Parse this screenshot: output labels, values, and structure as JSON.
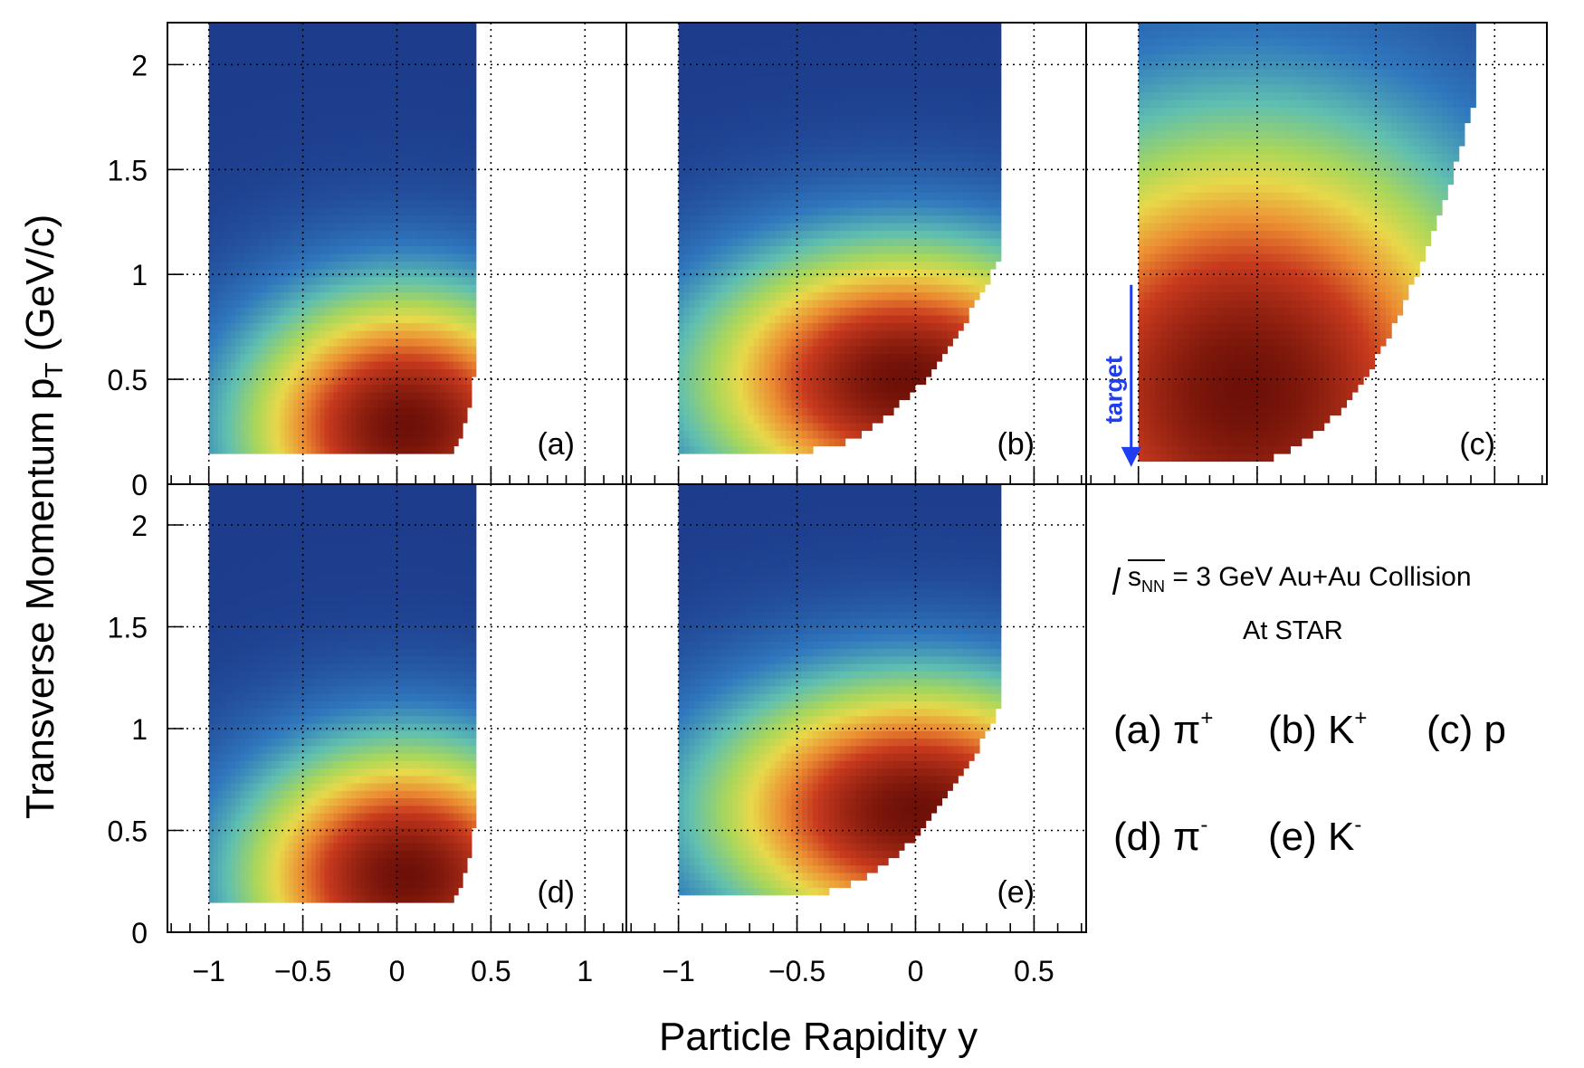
{
  "figure": {
    "energy_label": {
      "prefix": "s",
      "subscript": "NN",
      "suffix": " = 3 GeV Au+Au Collision"
    },
    "experiment_label": "At STAR",
    "target_label": "target",
    "legend": [
      {
        "id": "a",
        "text": "(a) π",
        "sup": "+"
      },
      {
        "id": "b",
        "text": "(b) K",
        "sup": "+"
      },
      {
        "id": "c",
        "text": "(c) p",
        "sup": ""
      },
      {
        "id": "d",
        "text": "(d) π",
        "sup": "-"
      },
      {
        "id": "e",
        "text": "(e) K",
        "sup": "-"
      }
    ],
    "colors": {
      "low": "#1d3c8c",
      "mid": "#5fbfb0",
      "high_mid": "#e8d84a",
      "high": "#c83a1e",
      "peak": "#6e1008",
      "target_arrow": "#1f3ef2"
    }
  },
  "chart_data": {
    "type": "heatmap",
    "xlabel": "Particle Rapidity y",
    "ylabel": "Transverse Momentum p",
    "ylabel_subscript": "T",
    "ylabel_unit": " (GeV/c)",
    "x_ticks_left": [
      "−1",
      "−0.5",
      "0",
      "0.5",
      "1"
    ],
    "x_ticks_right": [
      "−1",
      "−0.5",
      "0",
      "0.5"
    ],
    "y_ticks": [
      "0",
      "0.5",
      "1",
      "1.5",
      "2"
    ],
    "xlim_left": [
      -1.22,
      1.22
    ],
    "xlim_right": [
      -1.22,
      0.72
    ],
    "ylim": [
      0,
      2.2
    ],
    "grid": true,
    "panels": [
      {
        "id": "a",
        "label": "(a)",
        "particle": "π+",
        "y_range": [
          -1.0,
          0.42
        ],
        "pt_min": 0.16,
        "peak": [
          0.05,
          0.28
        ]
      },
      {
        "id": "b",
        "label": "(b)",
        "particle": "K+",
        "y_range": [
          -1.0,
          0.36
        ],
        "pt_min": 0.16,
        "peak": [
          -0.05,
          0.5
        ]
      },
      {
        "id": "c",
        "label": "(c)",
        "particle": "p",
        "y_range": [
          -1.0,
          0.42
        ],
        "pt_min": 0.1,
        "peak": [
          -0.55,
          0.45
        ]
      },
      {
        "id": "d",
        "label": "(d)",
        "particle": "π-",
        "y_range": [
          -1.0,
          0.42
        ],
        "pt_min": 0.16,
        "peak": [
          0.05,
          0.28
        ]
      },
      {
        "id": "e",
        "label": "(e)",
        "particle": "K-",
        "y_range": [
          -1.0,
          0.36
        ],
        "pt_min": 0.18,
        "peak": [
          0.0,
          0.6
        ]
      }
    ]
  }
}
